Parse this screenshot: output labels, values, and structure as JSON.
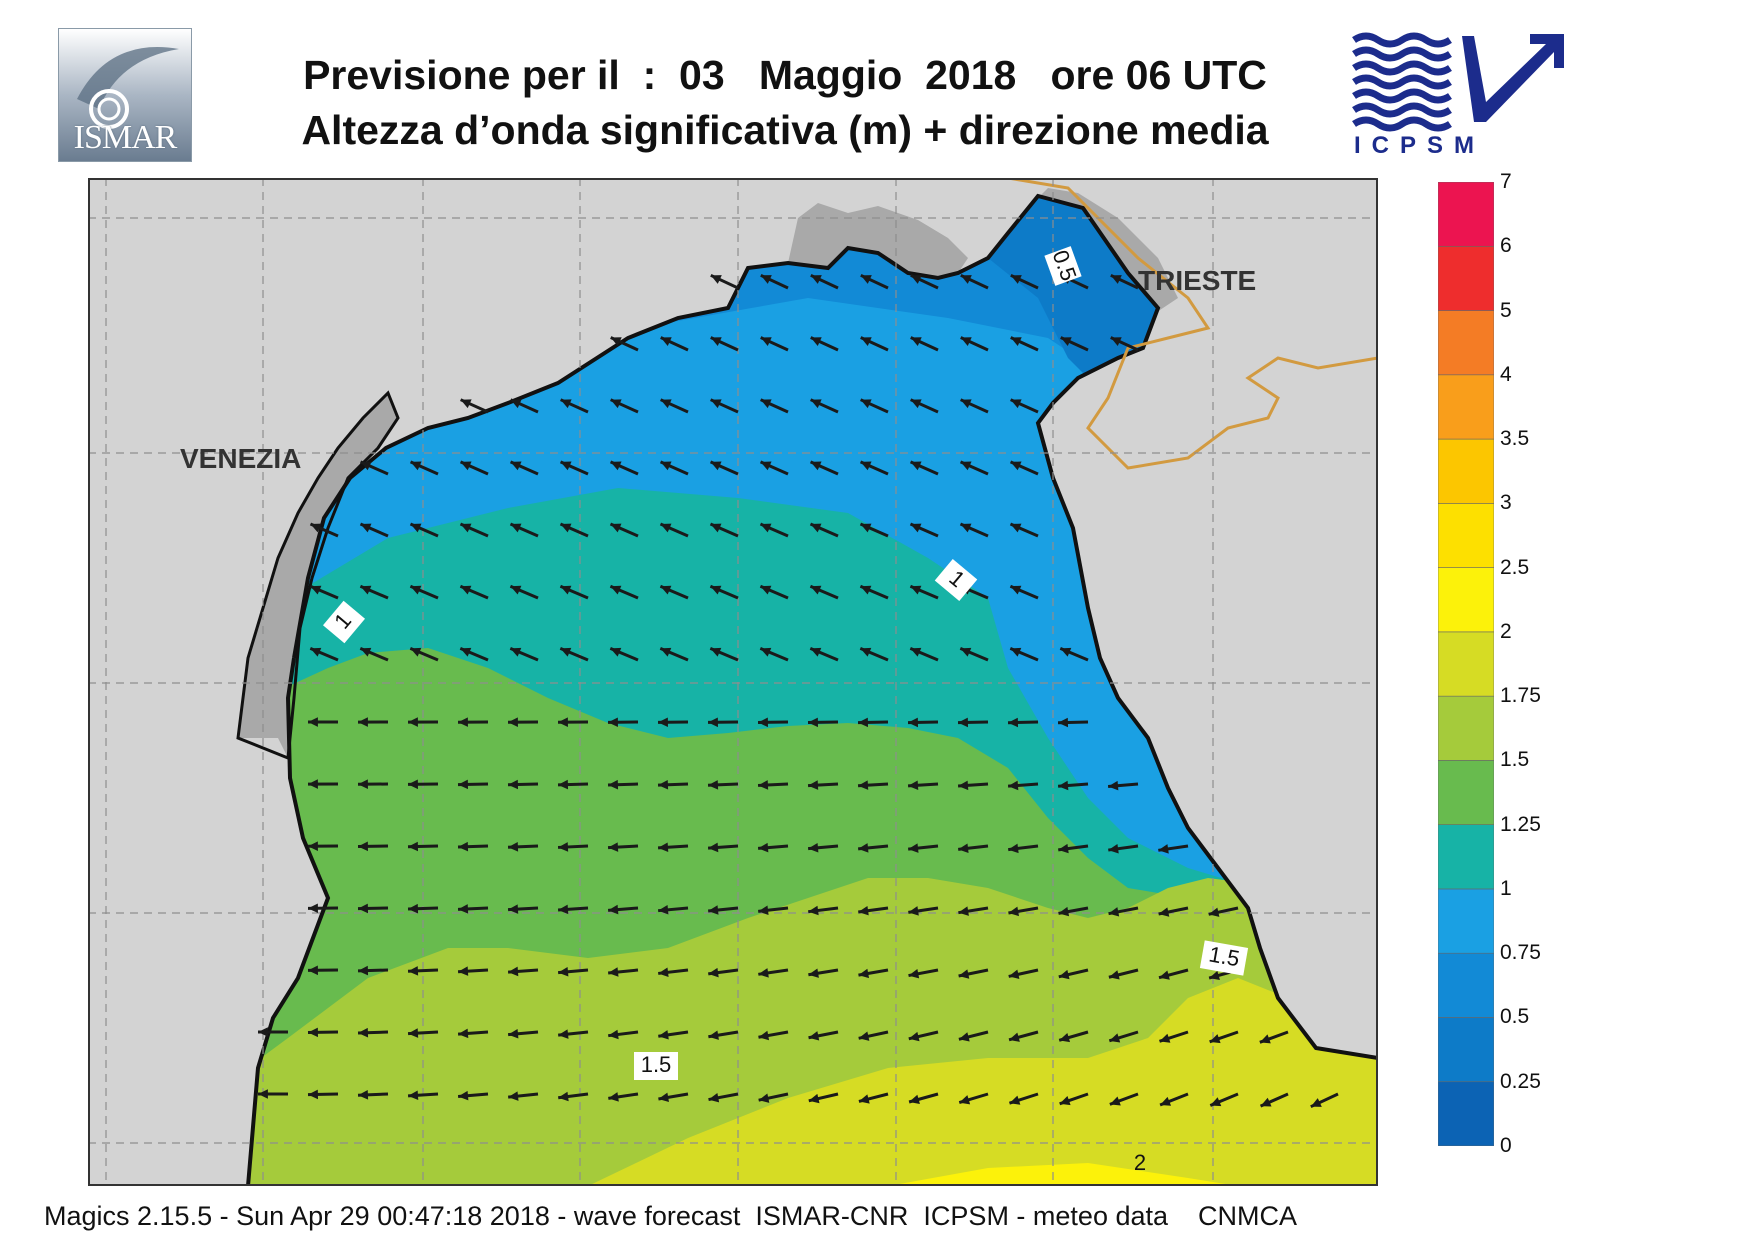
{
  "title": {
    "line1": "Previsione per il  :  03   Maggio  2018   ore 06 UTC",
    "line2": "Altezza d’onda significativa (m) + direzione media"
  },
  "logos": {
    "left": "ISMAR",
    "right": "ICPSM"
  },
  "cities": {
    "venezia": "VENEZIA",
    "trieste": "TRIESTE"
  },
  "contour_labels": [
    "0.5",
    "1",
    "1",
    "1.5",
    "1.5",
    "2"
  ],
  "colorbar": {
    "unit": "m",
    "levels": [
      "0",
      "0.25",
      "0.5",
      "0.75",
      "1",
      "1.25",
      "1.5",
      "1.75",
      "2",
      "2.5",
      "3",
      "3.5",
      "4",
      "5",
      "6",
      "7"
    ],
    "colors": [
      "#0c63b4",
      "#0d7bc8",
      "#128ad6",
      "#1aa0e3",
      "#17b3a6",
      "#68bb4e",
      "#a5cb3b",
      "#d6dc24",
      "#fcf20a",
      "#fde000",
      "#fcc600",
      "#f99e1b",
      "#f47c25",
      "#ee2d2d",
      "#ec1450"
    ]
  },
  "map_colors": {
    "land": "#d3d3d3",
    "land_dark": "#a9a9a9",
    "border": "#d29a40",
    "coast": "#111111",
    "arrow": "#1a1a1a",
    "grid": "#8e8e8e"
  },
  "footer": "Magics 2.15.5 - Sun Apr 29 00:47:18 2018 - wave forecast  ISMAR-CNR  ICPSM - meteo data    CNMCA"
}
